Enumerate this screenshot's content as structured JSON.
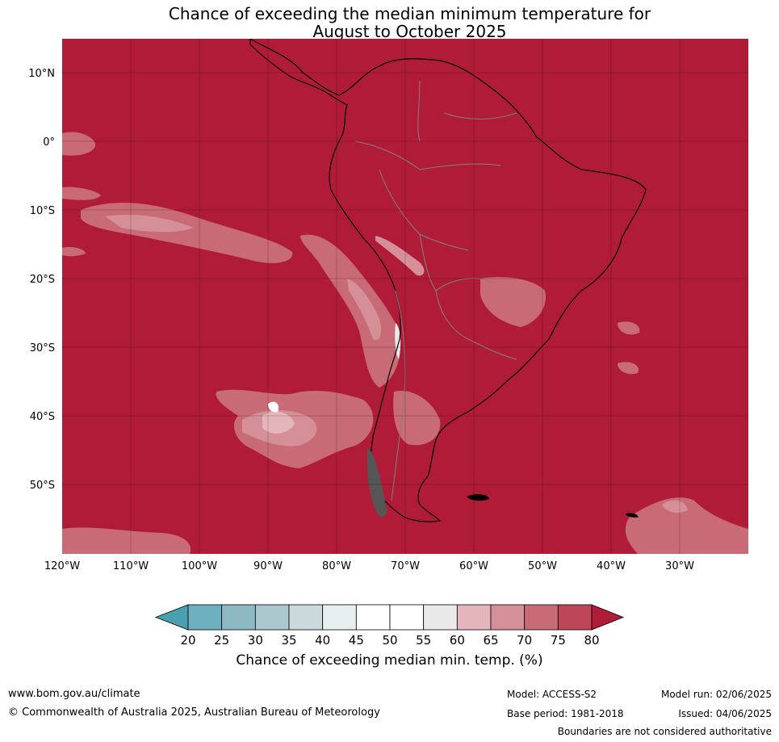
{
  "title": {
    "line1": "Chance of exceeding the median minimum temperature for",
    "line2": "August to October 2025"
  },
  "map": {
    "background_color": "#b01c38",
    "lat_labels": [
      "10°N",
      "0°",
      "10°S",
      "20°S",
      "30°S",
      "40°S",
      "50°S"
    ],
    "lon_labels": [
      "120°W",
      "110°W",
      "100°W",
      "90°W",
      "80°W",
      "70°W",
      "60°W",
      "50°W",
      "40°W",
      "30°W"
    ]
  },
  "colorbar": {
    "ticks": [
      "20",
      "25",
      "30",
      "35",
      "40",
      "45",
      "50",
      "55",
      "60",
      "65",
      "70",
      "75",
      "80"
    ],
    "colors": [
      "#4a9fb0",
      "#6eb0bf",
      "#8db9c5",
      "#abc8ce",
      "#cbd9dc",
      "#e7eff1",
      "#ffffff",
      "#ffffff",
      "#e9e9e9",
      "#e4b6bc",
      "#d48f99",
      "#c96a77",
      "#bd4756",
      "#b01c38"
    ],
    "label": "Chance of exceeding median min. temp. (%)"
  },
  "footer": {
    "url": "www.bom.gov.au/climate",
    "copyright": "© Commonwealth of Australia 2025, Australian Bureau of Meteorology",
    "model": "Model: ACCESS-S2",
    "base_period": "Base period: 1981-2018",
    "model_run": "Model run: 02/06/2025",
    "issued": "Issued: 04/06/2025",
    "disclaimer": "Boundaries are not considered authoritative"
  }
}
